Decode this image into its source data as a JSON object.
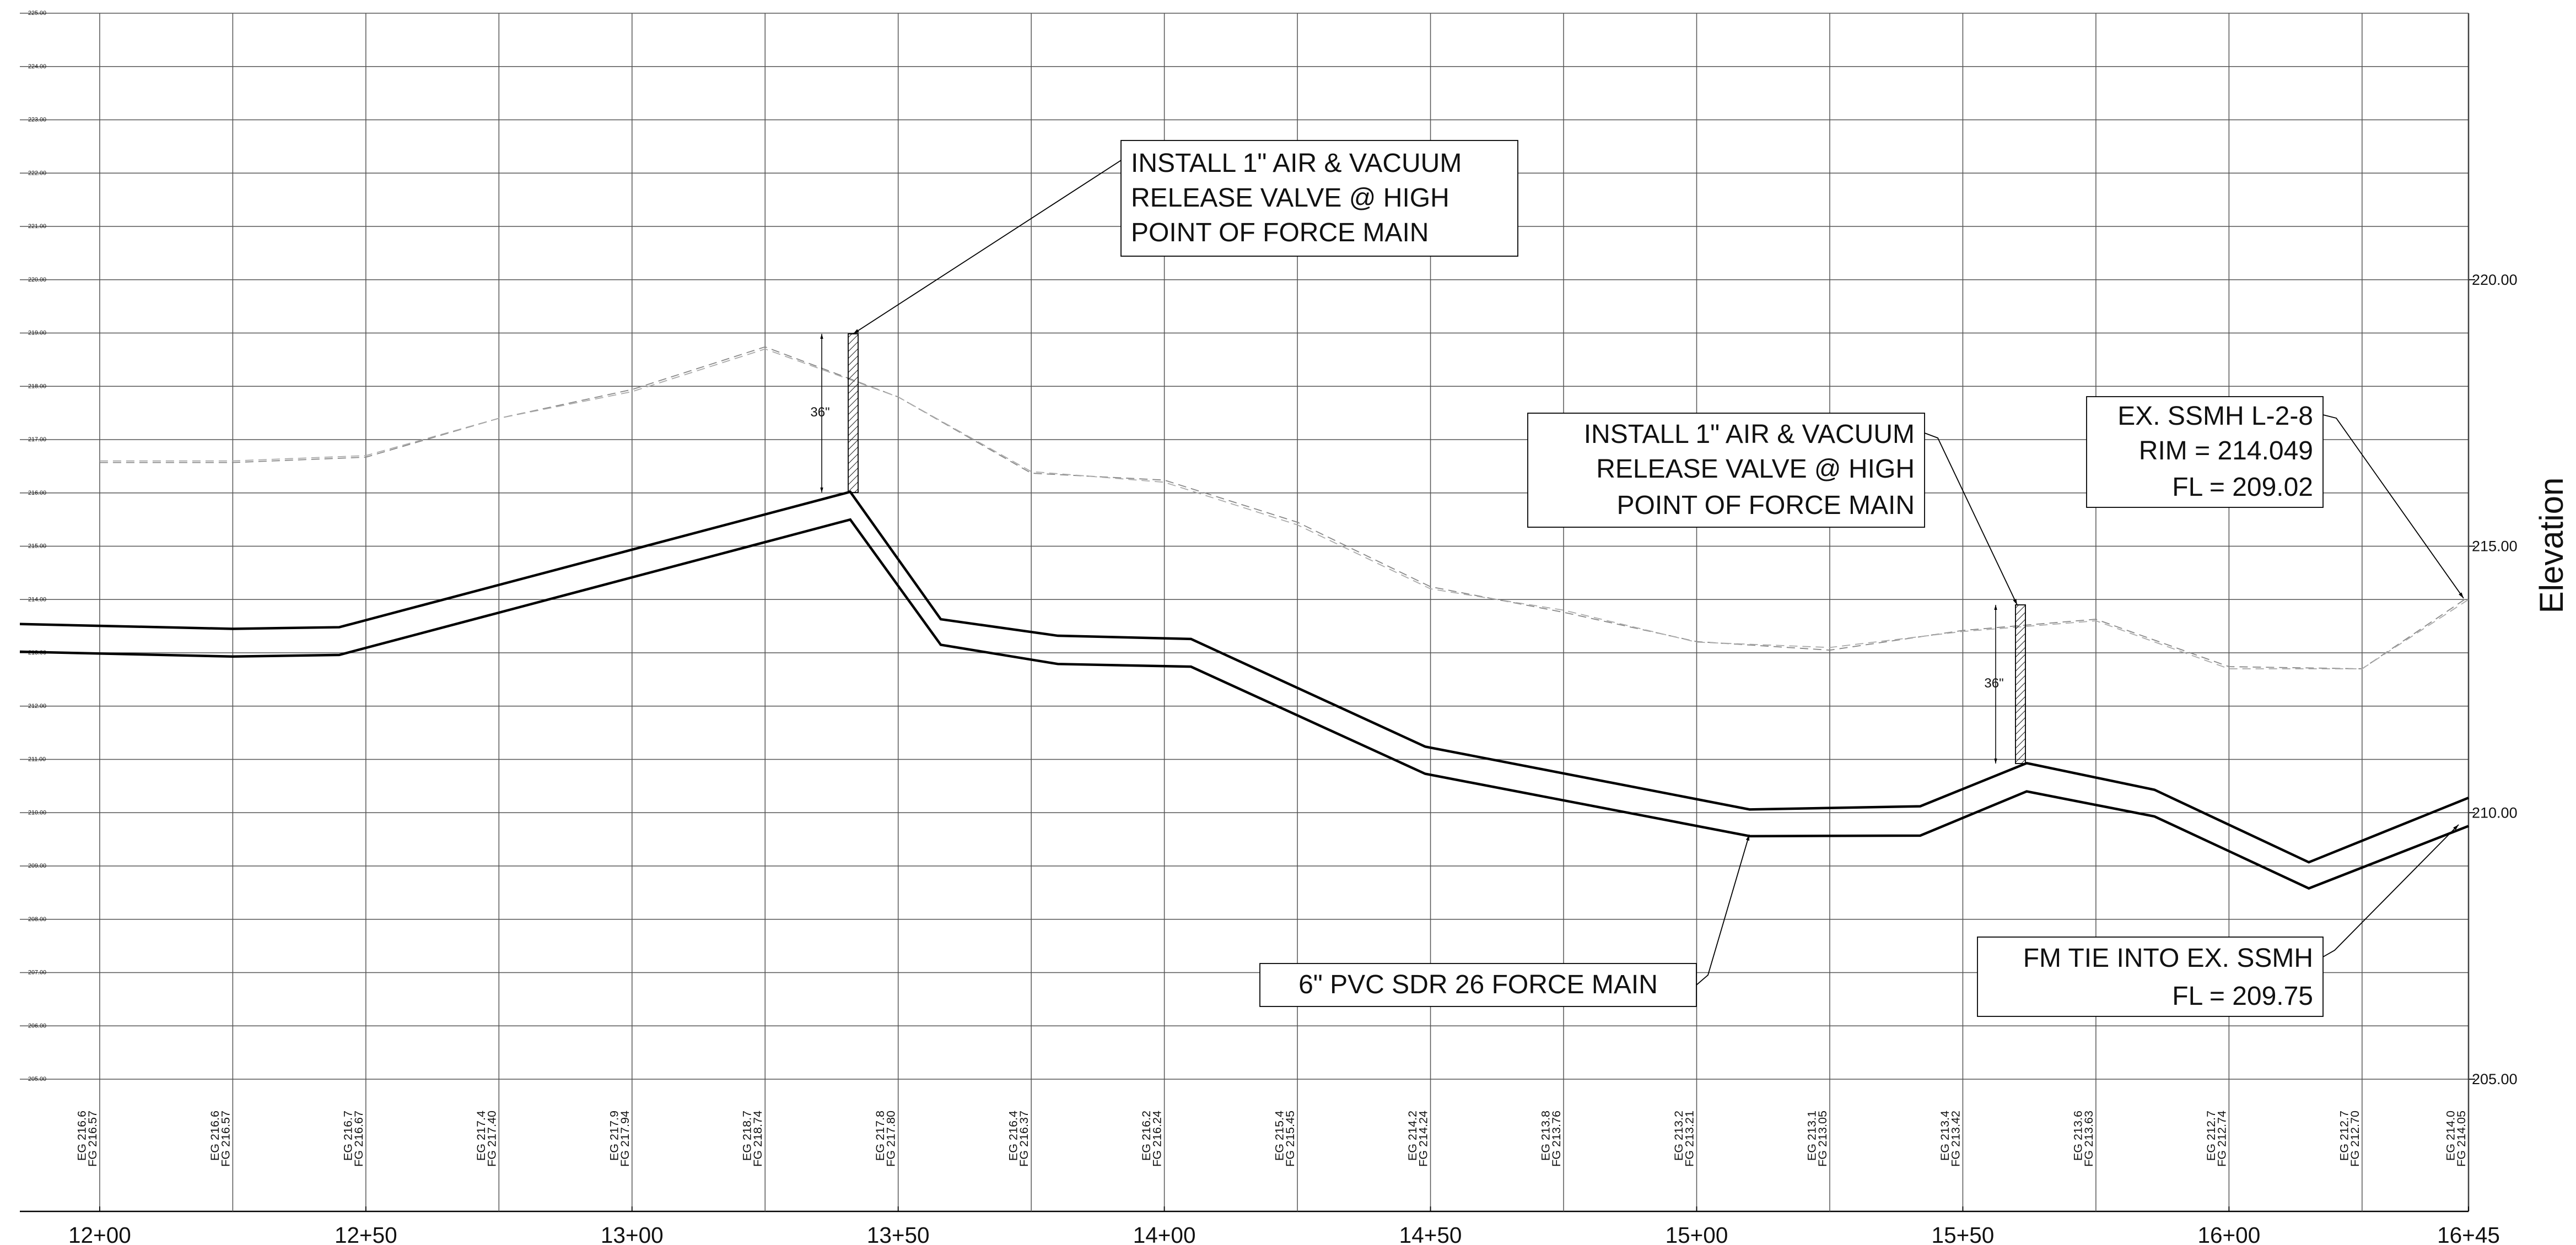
{
  "chart_data": {
    "type": "line",
    "xlim": [
      1185,
      1645
    ],
    "ylim": [
      205,
      225
    ],
    "y2lim": [
      205,
      225
    ],
    "y2label": "Elevation",
    "grid": true,
    "xticks": [
      {
        "value": 1200,
        "label": "12+00"
      },
      {
        "value": 1250,
        "label": "12+50"
      },
      {
        "value": 1300,
        "label": "13+00"
      },
      {
        "value": 1350,
        "label": "13+50"
      },
      {
        "value": 1400,
        "label": "14+00"
      },
      {
        "value": 1450,
        "label": "14+50"
      },
      {
        "value": 1500,
        "label": "15+00"
      },
      {
        "value": 1550,
        "label": "15+50"
      },
      {
        "value": 1600,
        "label": "16+00"
      },
      {
        "value": 1645,
        "label": "16+45"
      }
    ],
    "yticks": [
      {
        "value": 205,
        "label": "205.00"
      },
      {
        "value": 206,
        "label": "206.00"
      },
      {
        "value": 207,
        "label": "207.00"
      },
      {
        "value": 208,
        "label": "208.00"
      },
      {
        "value": 209,
        "label": "209.00"
      },
      {
        "value": 210,
        "label": "210.00"
      },
      {
        "value": 211,
        "label": "211.00"
      },
      {
        "value": 212,
        "label": "212.00"
      },
      {
        "value": 213,
        "label": "213.00"
      },
      {
        "value": 214,
        "label": "214.00"
      },
      {
        "value": 215,
        "label": "215.00"
      },
      {
        "value": 216,
        "label": "216.00"
      },
      {
        "value": 217,
        "label": "217.00"
      },
      {
        "value": 218,
        "label": "218.00"
      },
      {
        "value": 219,
        "label": "219.00"
      },
      {
        "value": 220,
        "label": "220.00"
      },
      {
        "value": 221,
        "label": "221.00"
      },
      {
        "value": 222,
        "label": "222.00"
      },
      {
        "value": 223,
        "label": "223.00"
      },
      {
        "value": 224,
        "label": "224.00"
      },
      {
        "value": 225,
        "label": "225.00"
      }
    ],
    "y2ticks": [
      {
        "value": 205,
        "label": "205.00"
      },
      {
        "value": 210,
        "label": "210.00"
      },
      {
        "value": 215,
        "label": "215.00"
      },
      {
        "value": 220,
        "label": "220.00"
      }
    ],
    "series": [
      {
        "color": "#000000",
        "style": "solid",
        "x": [
          1185,
          1225,
          1245,
          1341,
          1358,
          1380,
          1405,
          1449,
          1510,
          1542,
          1562,
          1586,
          1615,
          1645
        ],
        "values": [
          213.54,
          213.45,
          213.48,
          216.02,
          213.63,
          213.32,
          213.26,
          211.24,
          210.06,
          210.12,
          210.93,
          210.43,
          209.07,
          210.28
        ]
      },
      {
        "color": "#000000",
        "style": "solid",
        "x": [
          1185,
          1225,
          1245,
          1341,
          1358,
          1380,
          1405,
          1449,
          1510,
          1542,
          1562,
          1586,
          1615,
          1645
        ],
        "values": [
          213.02,
          212.93,
          212.96,
          215.5,
          213.15,
          212.79,
          212.74,
          210.73,
          209.56,
          209.57,
          210.4,
          209.93,
          208.58,
          209.75
        ]
      },
      {
        "color": "#888888",
        "style": "dashed",
        "x": [
          1200,
          1225,
          1250,
          1275,
          1300,
          1325,
          1350,
          1375,
          1400,
          1425,
          1450,
          1475,
          1500,
          1525,
          1550,
          1575,
          1600,
          1625,
          1645
        ],
        "values": [
          216.57,
          216.57,
          216.67,
          217.4,
          217.94,
          218.74,
          217.8,
          216.37,
          216.24,
          215.45,
          214.24,
          213.76,
          213.21,
          213.05,
          213.42,
          213.63,
          212.74,
          212.7,
          214.05
        ],
        "value_labels": [
          "FG 216.57",
          "FG 216.57",
          "FG 216.67",
          "FG 217.40",
          "FG 217.94",
          "FG 218.74",
          "FG 217.80",
          "FG 216.37",
          "FG 216.24",
          "FG 215.45",
          "FG 214.24",
          "FG 213.76",
          "FG 213.21",
          "FG 213.05",
          "FG 213.42",
          "FG 213.63",
          "FG 212.74",
          "FG 212.70",
          "FG 214.05"
        ]
      },
      {
        "color": "#aaaaaa",
        "style": "dashed",
        "x": [
          1200,
          1225,
          1250,
          1275,
          1300,
          1325,
          1350,
          1375,
          1400,
          1425,
          1450,
          1475,
          1500,
          1525,
          1550,
          1575,
          1600,
          1625,
          1645
        ],
        "values": [
          216.6,
          216.6,
          216.7,
          217.4,
          217.9,
          218.7,
          217.8,
          216.4,
          216.2,
          215.4,
          214.2,
          213.8,
          213.2,
          213.1,
          213.4,
          213.6,
          212.7,
          212.7,
          214
        ],
        "value_labels": [
          "EG 216.6",
          "EG 216.6",
          "EG 216.7",
          "EG 217.4",
          "EG 217.9",
          "EG 218.7",
          "EG 217.8",
          "EG 216.4",
          "EG 216.2",
          "EG 215.4",
          "EG 214.2",
          "EG 213.8",
          "EG 213.2",
          "EG 213.1",
          "EG 213.4",
          "EG 213.6",
          "EG 212.7",
          "EG 212.7",
          "EG 214.0"
        ]
      }
    ],
    "dimension_labels": [
      "36\"",
      "36\""
    ],
    "annotations": [
      {
        "lines": [
          "INSTALL 1\" AIR & VACUUM",
          "RELEASE VALVE @ HIGH",
          "POINT OF FORCE MAIN"
        ]
      },
      {
        "lines": [
          "INSTALL 1\" AIR & VACUUM",
          "RELEASE VALVE @ HIGH",
          "POINT OF FORCE MAIN"
        ]
      },
      {
        "lines": [
          "EX. SSMH L-2-8",
          "RIM = 214.049",
          "FL = 209.02"
        ]
      },
      {
        "lines": [
          "6\" PVC SDR 26 FORCE MAIN"
        ]
      },
      {
        "lines": [
          "FM TIE INTO EX. SSMH",
          "FL = 209.75"
        ]
      }
    ]
  }
}
